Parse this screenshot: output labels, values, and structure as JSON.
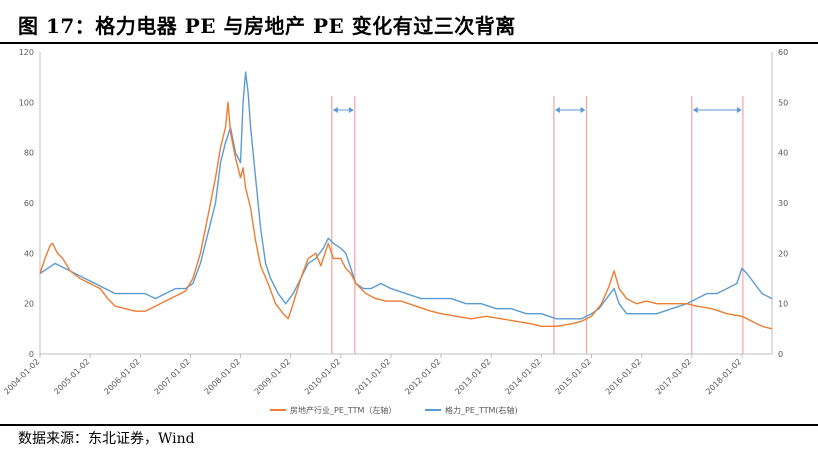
{
  "header": {
    "title": "图 17：格力电器 PE 与房地产 PE 变化有过三次背离"
  },
  "footer": {
    "source": "数据来源：东北证券，Wind"
  },
  "chart_data": {
    "type": "line",
    "title": "",
    "x_ticks": [
      "2004-01-02",
      "2005-01-02",
      "2006-01-02",
      "2007-01-02",
      "2008-01-02",
      "2009-01-02",
      "2010-01-02",
      "2011-01-02",
      "2012-01-02",
      "2013-01-02",
      "2014-01-02",
      "2015-01-02",
      "2016-01-02",
      "2017-01-02",
      "2018-01-02"
    ],
    "y_left": {
      "ticks": [
        0,
        20,
        40,
        60,
        80,
        100,
        120
      ],
      "ylim": [
        0,
        120
      ]
    },
    "y_right": {
      "ticks": [
        0,
        10,
        20,
        30,
        40,
        50,
        60
      ],
      "ylim": [
        0,
        60
      ]
    },
    "xlim": [
      2004.0,
      2018.6
    ],
    "legend_position": "bottom",
    "colors": {
      "realestate": "#ED7D31",
      "gree": "#5B9BD5",
      "marker": "#F4A3A3",
      "arrow": "#5B9BD5"
    },
    "series": [
      {
        "name": "房地产行业_PE_TTM（左轴）",
        "axis": "left",
        "points": [
          [
            2004.0,
            32
          ],
          [
            2004.1,
            38
          ],
          [
            2004.2,
            43
          ],
          [
            2004.25,
            44
          ],
          [
            2004.35,
            40
          ],
          [
            2004.45,
            38
          ],
          [
            2004.6,
            33
          ],
          [
            2004.8,
            30
          ],
          [
            2005.0,
            28
          ],
          [
            2005.2,
            26
          ],
          [
            2005.35,
            22
          ],
          [
            2005.5,
            19
          ],
          [
            2005.7,
            18
          ],
          [
            2005.9,
            17
          ],
          [
            2006.1,
            17
          ],
          [
            2006.3,
            19
          ],
          [
            2006.5,
            21
          ],
          [
            2006.7,
            23
          ],
          [
            2006.9,
            25
          ],
          [
            2007.05,
            30
          ],
          [
            2007.2,
            40
          ],
          [
            2007.35,
            55
          ],
          [
            2007.5,
            70
          ],
          [
            2007.6,
            82
          ],
          [
            2007.7,
            90
          ],
          [
            2007.75,
            100
          ],
          [
            2007.8,
            88
          ],
          [
            2007.9,
            78
          ],
          [
            2008.0,
            70
          ],
          [
            2008.05,
            74
          ],
          [
            2008.1,
            66
          ],
          [
            2008.2,
            58
          ],
          [
            2008.3,
            45
          ],
          [
            2008.4,
            35
          ],
          [
            2008.55,
            28
          ],
          [
            2008.7,
            20
          ],
          [
            2008.85,
            16
          ],
          [
            2008.95,
            14
          ],
          [
            2009.05,
            20
          ],
          [
            2009.2,
            30
          ],
          [
            2009.35,
            38
          ],
          [
            2009.5,
            40
          ],
          [
            2009.6,
            35
          ],
          [
            2009.75,
            44
          ],
          [
            2009.85,
            38
          ],
          [
            2010.0,
            38
          ],
          [
            2010.1,
            34
          ],
          [
            2010.2,
            32
          ],
          [
            2010.3,
            28
          ],
          [
            2010.4,
            26
          ],
          [
            2010.5,
            24
          ],
          [
            2010.7,
            22
          ],
          [
            2010.9,
            21
          ],
          [
            2011.2,
            21
          ],
          [
            2011.5,
            19
          ],
          [
            2011.8,
            17
          ],
          [
            2012.0,
            16
          ],
          [
            2012.3,
            15
          ],
          [
            2012.6,
            14
          ],
          [
            2012.9,
            15
          ],
          [
            2013.2,
            14
          ],
          [
            2013.5,
            13
          ],
          [
            2013.8,
            12
          ],
          [
            2014.0,
            11
          ],
          [
            2014.3,
            11
          ],
          [
            2014.6,
            12
          ],
          [
            2014.8,
            13
          ],
          [
            2015.0,
            15
          ],
          [
            2015.2,
            20
          ],
          [
            2015.35,
            27
          ],
          [
            2015.45,
            33
          ],
          [
            2015.55,
            26
          ],
          [
            2015.7,
            22
          ],
          [
            2015.9,
            20
          ],
          [
            2016.1,
            21
          ],
          [
            2016.3,
            20
          ],
          [
            2016.6,
            20
          ],
          [
            2016.9,
            20
          ],
          [
            2017.1,
            19
          ],
          [
            2017.4,
            18
          ],
          [
            2017.7,
            16
          ],
          [
            2018.0,
            15
          ],
          [
            2018.2,
            13
          ],
          [
            2018.4,
            11
          ],
          [
            2018.6,
            10
          ]
        ]
      },
      {
        "name": "格力_PE_TTM(右轴)",
        "axis": "right",
        "points": [
          [
            2004.0,
            16
          ],
          [
            2004.15,
            17
          ],
          [
            2004.3,
            18
          ],
          [
            2004.5,
            17
          ],
          [
            2004.7,
            16
          ],
          [
            2004.9,
            15
          ],
          [
            2005.1,
            14
          ],
          [
            2005.3,
            13
          ],
          [
            2005.5,
            12
          ],
          [
            2005.7,
            12
          ],
          [
            2005.9,
            12
          ],
          [
            2006.1,
            12
          ],
          [
            2006.3,
            11
          ],
          [
            2006.5,
            12
          ],
          [
            2006.7,
            13
          ],
          [
            2006.9,
            13
          ],
          [
            2007.05,
            14
          ],
          [
            2007.2,
            18
          ],
          [
            2007.35,
            24
          ],
          [
            2007.5,
            30
          ],
          [
            2007.6,
            38
          ],
          [
            2007.7,
            42
          ],
          [
            2007.8,
            45
          ],
          [
            2007.9,
            40
          ],
          [
            2008.0,
            38
          ],
          [
            2008.05,
            50
          ],
          [
            2008.1,
            56
          ],
          [
            2008.15,
            52
          ],
          [
            2008.2,
            45
          ],
          [
            2008.3,
            35
          ],
          [
            2008.4,
            25
          ],
          [
            2008.5,
            18
          ],
          [
            2008.6,
            15
          ],
          [
            2008.75,
            12
          ],
          [
            2008.9,
            10
          ],
          [
            2009.05,
            12
          ],
          [
            2009.2,
            15
          ],
          [
            2009.35,
            18
          ],
          [
            2009.5,
            19
          ],
          [
            2009.65,
            21
          ],
          [
            2009.75,
            23
          ],
          [
            2009.85,
            22
          ],
          [
            2010.0,
            21
          ],
          [
            2010.1,
            20
          ],
          [
            2010.2,
            17
          ],
          [
            2010.3,
            14
          ],
          [
            2010.45,
            13
          ],
          [
            2010.6,
            13
          ],
          [
            2010.8,
            14
          ],
          [
            2011.0,
            13
          ],
          [
            2011.3,
            12
          ],
          [
            2011.6,
            11
          ],
          [
            2011.9,
            11
          ],
          [
            2012.2,
            11
          ],
          [
            2012.5,
            10
          ],
          [
            2012.8,
            10
          ],
          [
            2013.1,
            9
          ],
          [
            2013.4,
            9
          ],
          [
            2013.7,
            8
          ],
          [
            2014.0,
            8
          ],
          [
            2014.3,
            7
          ],
          [
            2014.6,
            7
          ],
          [
            2014.8,
            7
          ],
          [
            2015.0,
            8
          ],
          [
            2015.15,
            9
          ],
          [
            2015.3,
            11
          ],
          [
            2015.45,
            13
          ],
          [
            2015.55,
            10
          ],
          [
            2015.7,
            8
          ],
          [
            2015.9,
            8
          ],
          [
            2016.1,
            8
          ],
          [
            2016.3,
            8
          ],
          [
            2016.6,
            9
          ],
          [
            2016.9,
            10
          ],
          [
            2017.1,
            11
          ],
          [
            2017.3,
            12
          ],
          [
            2017.5,
            12
          ],
          [
            2017.7,
            13
          ],
          [
            2017.9,
            14
          ],
          [
            2018.0,
            17
          ],
          [
            2018.1,
            16
          ],
          [
            2018.25,
            14
          ],
          [
            2018.4,
            12
          ],
          [
            2018.6,
            11
          ]
        ]
      }
    ],
    "markers": [
      {
        "x": [
          2009.82,
          2010.28
        ]
      },
      {
        "x": [
          2014.25,
          2014.9
        ]
      },
      {
        "x": [
          2017.0,
          2018.02
        ]
      }
    ]
  }
}
